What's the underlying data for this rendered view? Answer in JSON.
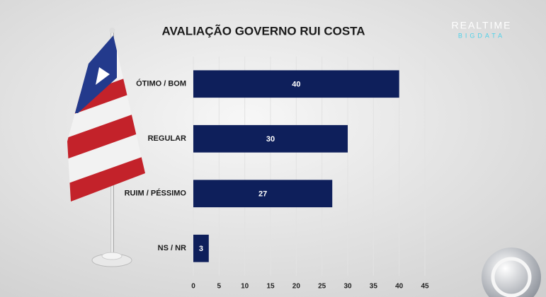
{
  "chart_data": {
    "type": "bar",
    "orientation": "horizontal",
    "title": "AVALIAÇÃO GOVERNO RUI COSTA",
    "categories": [
      "ÓTIMO / BOM",
      "REGULAR",
      "RUIM / PÉSSIMO",
      "NS / NR"
    ],
    "values": [
      40,
      30,
      27,
      3
    ],
    "color": "#0e1f5b",
    "xlim": [
      0,
      45
    ],
    "xticks": [
      0,
      5,
      10,
      15,
      20,
      25,
      30,
      35,
      40,
      45
    ],
    "grid": true
  },
  "logo": {
    "line1": "REALTIME",
    "line2": "BIGDATA"
  }
}
